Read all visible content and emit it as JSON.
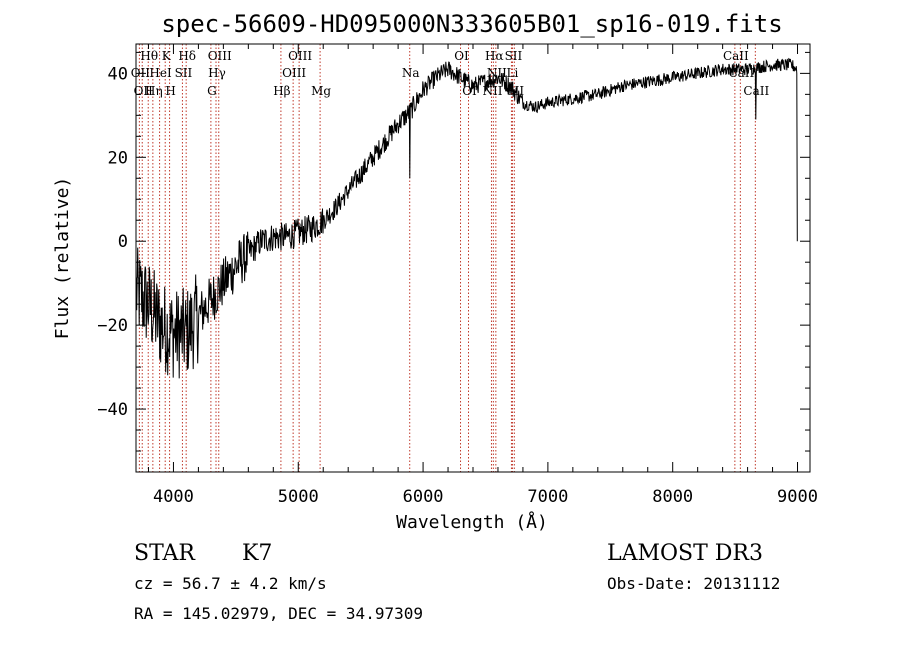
{
  "chart_data": {
    "type": "line",
    "title": "spec-56609-HD095000N333605B01_sp16-019.fits",
    "xlabel": "Wavelength (Å)",
    "ylabel": "Flux (relative)",
    "xlim": [
      3700,
      9100
    ],
    "ylim": [
      -55,
      47
    ],
    "xticks": [
      4000,
      5000,
      6000,
      7000,
      8000,
      9000
    ],
    "yticks": [
      -40,
      -20,
      0,
      20,
      40
    ],
    "spectrum_anchors": [
      [
        3700,
        -12
      ],
      [
        3800,
        -15
      ],
      [
        3900,
        -20
      ],
      [
        4000,
        -22
      ],
      [
        4100,
        -22
      ],
      [
        4200,
        -18
      ],
      [
        4300,
        -14
      ],
      [
        4400,
        -10
      ],
      [
        4500,
        -6
      ],
      [
        4600,
        -3
      ],
      [
        4700,
        0
      ],
      [
        4800,
        1
      ],
      [
        4900,
        1
      ],
      [
        5000,
        2
      ],
      [
        5100,
        3
      ],
      [
        5200,
        5
      ],
      [
        5300,
        8
      ],
      [
        5400,
        12
      ],
      [
        5500,
        16
      ],
      [
        5600,
        20
      ],
      [
        5700,
        24
      ],
      [
        5800,
        28
      ],
      [
        5900,
        31
      ],
      [
        6000,
        36
      ],
      [
        6100,
        39
      ],
      [
        6200,
        41
      ],
      [
        6300,
        39
      ],
      [
        6400,
        37
      ],
      [
        6500,
        38
      ],
      [
        6600,
        39
      ],
      [
        6700,
        37
      ],
      [
        6800,
        33
      ],
      [
        6900,
        32
      ],
      [
        7000,
        33
      ],
      [
        7200,
        34
      ],
      [
        7400,
        35
      ],
      [
        7600,
        37
      ],
      [
        7800,
        38
      ],
      [
        8000,
        39
      ],
      [
        8200,
        40
      ],
      [
        8400,
        41
      ],
      [
        8600,
        41
      ],
      [
        8800,
        42
      ],
      [
        8950,
        42
      ],
      [
        9000,
        41
      ]
    ],
    "spectrum_features": [
      {
        "x": 5893,
        "y": 15
      },
      {
        "x": 8665,
        "y": 29
      },
      {
        "x": 9000,
        "y": 0
      }
    ],
    "lines": [
      {
        "x": 3727,
        "labels": [
          "OII"
        ],
        "rows": [
          1
        ]
      },
      {
        "x": 3750,
        "labels": [
          "OII"
        ],
        "rows": [
          2
        ]
      },
      {
        "x": 3798,
        "labels": [
          "Hθ"
        ],
        "rows": [
          0
        ]
      },
      {
        "x": 3835,
        "labels": [
          "Hη"
        ],
        "rows": [
          2
        ]
      },
      {
        "x": 3889,
        "labels": [
          "HeI"
        ],
        "rows": [
          1
        ]
      },
      {
        "x": 3934,
        "labels": [
          "K"
        ],
        "rows": [
          0
        ]
      },
      {
        "x": 3969,
        "labels": [
          "H"
        ],
        "rows": [
          2
        ]
      },
      {
        "x": 4072,
        "labels": [
          "SII"
        ],
        "rows": [
          1
        ]
      },
      {
        "x": 4102,
        "labels": [
          "Hδ"
        ],
        "rows": [
          0
        ]
      },
      {
        "x": 4300,
        "labels": [
          "G"
        ],
        "rows": [
          2
        ]
      },
      {
        "x": 4341,
        "labels": [
          "Hγ"
        ],
        "rows": [
          1
        ]
      },
      {
        "x": 4363,
        "labels": [
          "OIII"
        ],
        "rows": [
          0
        ]
      },
      {
        "x": 4861,
        "labels": [
          "Hβ"
        ],
        "rows": [
          2
        ]
      },
      {
        "x": 4959,
        "labels": [
          "OIII"
        ],
        "rows": [
          1
        ]
      },
      {
        "x": 5007,
        "labels": [
          "OIII"
        ],
        "rows": [
          0
        ]
      },
      {
        "x": 5175,
        "labels": [
          "Mg"
        ],
        "rows": [
          2
        ]
      },
      {
        "x": 5893,
        "labels": [
          "Na"
        ],
        "rows": [
          1
        ]
      },
      {
        "x": 6300,
        "labels": [
          "OI"
        ],
        "rows": [
          0
        ]
      },
      {
        "x": 6364,
        "labels": [
          "OI"
        ],
        "rows": [
          2
        ]
      },
      {
        "x": 6548,
        "labels": [
          "NII"
        ],
        "rows": [
          2
        ]
      },
      {
        "x": 6563,
        "labels": [
          "Hα"
        ],
        "rows": [
          0
        ]
      },
      {
        "x": 6583,
        "labels": [
          "NII"
        ],
        "rows": [
          1
        ]
      },
      {
        "x": 6716,
        "labels": [
          "SII"
        ],
        "rows": [
          0
        ]
      },
      {
        "x": 6708,
        "labels": [
          "Li"
        ],
        "rows": [
          1
        ]
      },
      {
        "x": 6731,
        "labels": [
          "SII"
        ],
        "rows": [
          2
        ]
      },
      {
        "x": 8498,
        "labels": [
          "CaII"
        ],
        "rows": [
          0
        ]
      },
      {
        "x": 8542,
        "labels": [
          "CaII"
        ],
        "rows": [
          1
        ]
      },
      {
        "x": 8662,
        "labels": [
          "CaII"
        ],
        "rows": [
          2
        ]
      }
    ],
    "line_label_override": {
      "3727": "OII",
      "3750": "OII"
    }
  },
  "info": {
    "class": "STAR",
    "subclass": "K7",
    "survey": "LAMOST DR3",
    "cz": "cz = 56.7 ± 4.2 km/s",
    "obs_date": "Obs-Date: 20131112",
    "coords": "RA = 145.02979, DEC =  34.97309"
  },
  "colors": {
    "line_marker": "#c0392b",
    "spectrum": "#000000",
    "axes": "#000000"
  }
}
